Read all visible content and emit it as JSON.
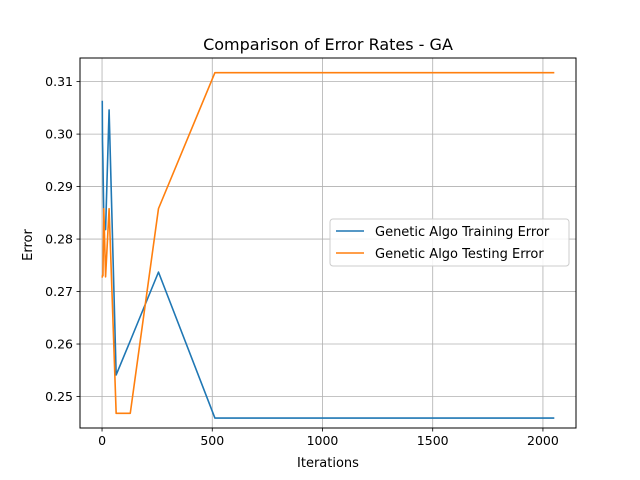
{
  "chart_data": {
    "type": "line",
    "title": "Comparison of Error Rates - GA",
    "xlabel": "Iterations",
    "ylabel": "Error",
    "xlim": [
      -100,
      2150
    ],
    "ylim": [
      0.244,
      0.3145
    ],
    "xticks": [
      {
        "value": 0,
        "label": "0"
      },
      {
        "value": 500,
        "label": "500"
      },
      {
        "value": 1000,
        "label": "1000"
      },
      {
        "value": 1500,
        "label": "1500"
      },
      {
        "value": 2000,
        "label": "2000"
      }
    ],
    "yticks": [
      {
        "value": 0.25,
        "label": "0.25"
      },
      {
        "value": 0.26,
        "label": "0.26"
      },
      {
        "value": 0.27,
        "label": "0.27"
      },
      {
        "value": 0.28,
        "label": "0.28"
      },
      {
        "value": 0.29,
        "label": "0.29"
      },
      {
        "value": 0.3,
        "label": "0.30"
      },
      {
        "value": 0.31,
        "label": "0.31"
      }
    ],
    "grid": true,
    "legend_position": "center-right",
    "series": [
      {
        "name": "Genetic Algo Training Error",
        "color": "#1f77b4",
        "points": [
          {
            "x": 1,
            "y": 0.3062
          },
          {
            "x": 2,
            "y": 0.2987
          },
          {
            "x": 4,
            "y": 0.2948
          },
          {
            "x": 8,
            "y": 0.2836
          },
          {
            "x": 16,
            "y": 0.2818
          },
          {
            "x": 32,
            "y": 0.3046
          },
          {
            "x": 64,
            "y": 0.2541
          },
          {
            "x": 128,
            "y": 0.2606
          },
          {
            "x": 256,
            "y": 0.2737
          },
          {
            "x": 512,
            "y": 0.2459
          },
          {
            "x": 1024,
            "y": 0.2459
          },
          {
            "x": 2048,
            "y": 0.2459
          }
        ]
      },
      {
        "name": "Genetic Algo Testing Error",
        "color": "#ff7f0e",
        "points": [
          {
            "x": 1,
            "y": 0.2728
          },
          {
            "x": 2,
            "y": 0.2731
          },
          {
            "x": 4,
            "y": 0.273
          },
          {
            "x": 8,
            "y": 0.2858
          },
          {
            "x": 16,
            "y": 0.2728
          },
          {
            "x": 32,
            "y": 0.2858
          },
          {
            "x": 64,
            "y": 0.2468
          },
          {
            "x": 128,
            "y": 0.2468
          },
          {
            "x": 256,
            "y": 0.2858
          },
          {
            "x": 512,
            "y": 0.3117
          },
          {
            "x": 1024,
            "y": 0.3117
          },
          {
            "x": 2048,
            "y": 0.3117
          }
        ]
      }
    ]
  }
}
